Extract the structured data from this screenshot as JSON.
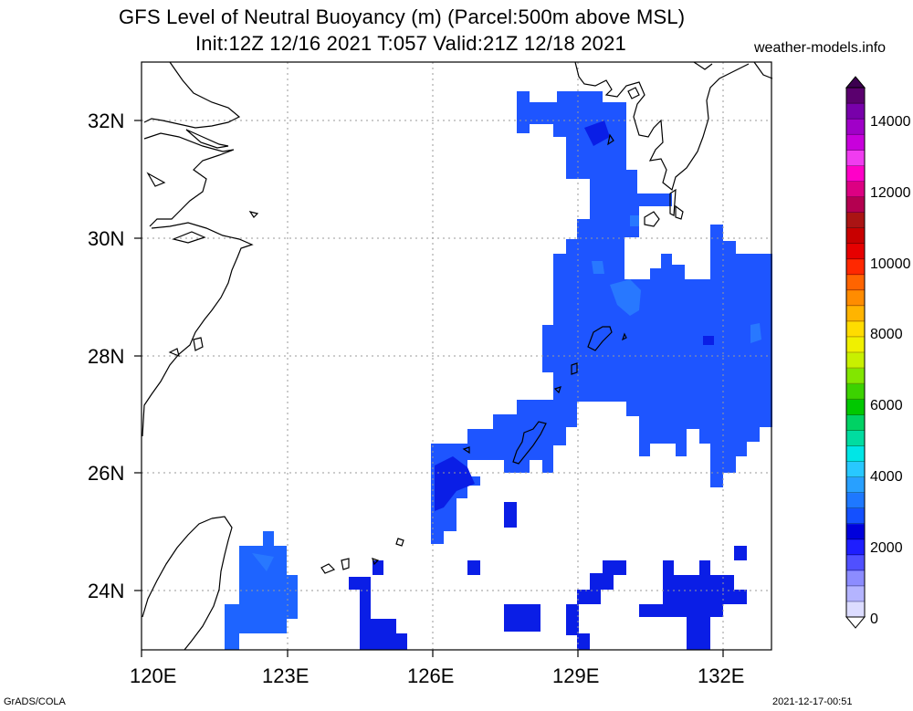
{
  "title": {
    "line1": "GFS Level of Neutral Buoyancy (m) (Parcel:500m above MSL)",
    "line2": "Init:12Z 12/16 2021 T:057 Valid:21Z 12/18 2021"
  },
  "site": "weather-models.info",
  "footer": {
    "left": "GrADS/COLA",
    "right": "2021-12-17-00:51"
  },
  "axes": {
    "lon_labels": [
      "120E",
      "123E",
      "126E",
      "129E",
      "132E"
    ],
    "lat_labels": [
      "32N",
      "30N",
      "28N",
      "26N",
      "24N"
    ]
  },
  "colorbar": {
    "labels": [
      "14000",
      "12000",
      "10000",
      "8000",
      "6000",
      "4000",
      "2000",
      "0"
    ],
    "colors": [
      "#dcdcff",
      "#b4b4ff",
      "#8c8cff",
      "#5050ff",
      "#1e1eff",
      "#0000dc",
      "#1450ff",
      "#1e78ff",
      "#28a0ff",
      "#28c8ff",
      "#00e6e6",
      "#00dca0",
      "#00d264",
      "#00c800",
      "#3cd200",
      "#82e600",
      "#c8f000",
      "#f0f000",
      "#ffdc00",
      "#ffb400",
      "#ff8c00",
      "#ff6400",
      "#ff2800",
      "#e60000",
      "#c80000",
      "#aa1414",
      "#b40050",
      "#dc0082",
      "#ff00c8",
      "#f03cf0",
      "#c800dc",
      "#a000c8",
      "#7800aa",
      "#5a006e"
    ],
    "units": "m"
  },
  "map_data": {
    "region": "East China Sea, Okinawa, Kyushu",
    "lon_range": [
      120,
      133
    ],
    "lat_range": [
      23,
      33
    ],
    "field": "Level of Neutral Buoyancy",
    "colors": {
      "deep": "#0a1eff",
      "mid": "#1e50ff",
      "light": "#1e64ff"
    }
  }
}
